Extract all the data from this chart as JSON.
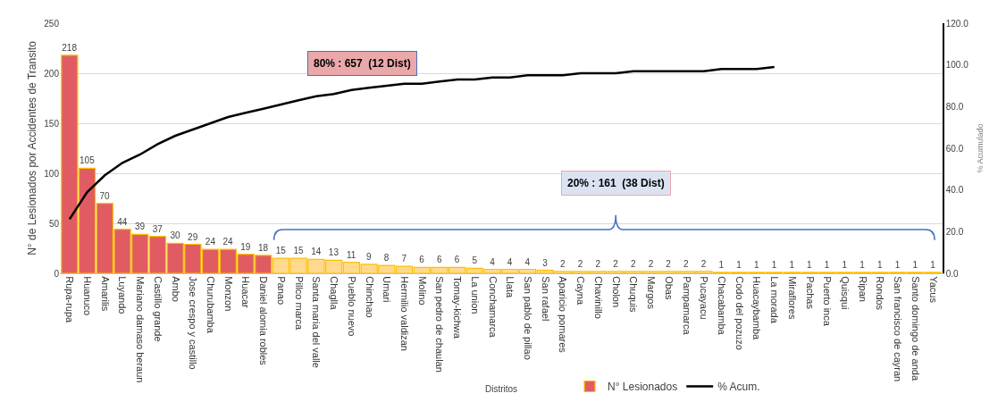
{
  "chart_data": {
    "type": "bar",
    "xlabel": "Distritos",
    "ylabel": "N° de Lesionados por Accidentes de Transito",
    "y2label": "% Acumulado",
    "categories": [
      "Rupa-rupa",
      "Huanuco",
      "Amarilis",
      "Luyando",
      "Mariano damaso beraun",
      "Castillo grande",
      "Ambo",
      "Jose crespo y castillo",
      "Churubamba",
      "Monzon",
      "Huacar",
      "Daniel alomia robles",
      "Panao",
      "Pillco marca",
      "Santa maria del valle",
      "Chaglla",
      "Pueblo nuevo",
      "Chinchao",
      "Umari",
      "Hermilio valdizan",
      "Molino",
      "San pedro de chaulan",
      "Tomay-kichwa",
      "La union",
      "Conchamarca",
      "Llata",
      "San pablo de pillao",
      "San rafael",
      "Aparicio pomares",
      "Cayna",
      "Chavinillo",
      "Cholon",
      "Chuquis",
      "Margos",
      "Obas",
      "Pampamarca",
      "Pucayacu",
      "Chacabamba",
      "Codo del pozuzo",
      "Huacaybamba",
      "La morada",
      "Miraflores",
      "Pachas",
      "Puerto inca",
      "Quisqui",
      "Ripan",
      "Rondos",
      "San francisco de cayran",
      "Santo domingo de anda",
      "Yacus"
    ],
    "series": [
      {
        "name": "N° Lesionados",
        "colors": [
          "#e05c62",
          "#e05c62",
          "#e05c62",
          "#e05c62",
          "#e05c62",
          "#e05c62",
          "#e05c62",
          "#e05c62",
          "#e05c62",
          "#e05c62",
          "#e05c62",
          "#e05c62",
          "#ffd98e",
          "#ffd98e",
          "#ffd98e",
          "#ffd98e",
          "#ffd98e",
          "#ffd98e",
          "#ffd98e",
          "#ffd98e",
          "#ffd98e",
          "#ffd98e",
          "#ffd98e",
          "#ffd98e",
          "#ffd98e",
          "#ffd98e",
          "#ffd98e",
          "#ffd98e",
          "#ffd98e",
          "#ffd98e",
          "#ffd98e",
          "#ffd98e",
          "#ffd98e",
          "#ffd98e",
          "#ffd98e",
          "#ffd98e",
          "#ffd98e",
          "#ffd98e",
          "#ffd98e",
          "#ffd98e",
          "#ffd98e",
          "#ffd98e",
          "#ffd98e",
          "#ffd98e",
          "#ffd98e",
          "#ffd98e",
          "#ffd98e",
          "#ffd98e",
          "#ffd98e",
          "#ffd98e"
        ],
        "values": [
          218,
          105,
          70,
          44,
          39,
          37,
          30,
          29,
          24,
          24,
          19,
          18,
          15,
          15,
          14,
          13,
          11,
          9,
          8,
          7,
          6,
          6,
          6,
          5,
          4,
          4,
          4,
          3,
          2,
          2,
          2,
          2,
          2,
          2,
          2,
          2,
          2,
          1,
          1,
          1,
          1,
          1,
          1,
          1,
          1,
          1,
          1,
          1,
          1,
          1
        ],
        "value_labels": [
          "218",
          "105",
          "70",
          "44",
          "39",
          "37",
          "30",
          "29",
          "24",
          "24",
          "19",
          "18",
          "15",
          "15",
          "14",
          "13",
          "11",
          "9",
          "8",
          "7",
          "6",
          "6",
          "6",
          "5",
          "4",
          "4",
          "4",
          "3",
          "2",
          "2",
          "2",
          "2",
          "2",
          "2",
          "2",
          "2",
          "2",
          "1",
          "1",
          "1",
          "1",
          "1",
          "1",
          "1",
          "1",
          "1",
          "1",
          "1",
          "1",
          "1"
        ]
      },
      {
        "name": "% Acum.",
        "type": "line",
        "axis": "y2",
        "color": "#000000",
        "values": [
          26,
          39,
          47,
          53,
          57,
          62,
          66,
          69,
          72,
          75,
          77,
          79,
          81,
          83,
          85,
          86,
          88,
          89,
          90,
          91,
          91,
          92,
          93,
          93,
          94,
          94,
          95,
          95,
          95,
          96,
          96,
          96,
          97,
          97,
          97,
          97,
          97,
          98,
          98,
          98,
          99,
          null,
          null,
          null,
          null,
          null,
          null,
          null,
          null,
          null
        ]
      }
    ],
    "ylim": [
      0,
      250
    ],
    "yticks": [
      0,
      50,
      100,
      150,
      200,
      250
    ],
    "y2lim": [
      0,
      120
    ],
    "y2ticks": [
      {
        "value": 0,
        "label": "0.0"
      },
      {
        "value": 20,
        "label": "20.0"
      },
      {
        "value": 40,
        "label": "40.0"
      },
      {
        "value": 60,
        "label": "60.0"
      },
      {
        "value": 80,
        "label": "80.0"
      },
      {
        "value": 100,
        "label": "100.0"
      },
      {
        "value": 120,
        "label": "120.0"
      }
    ],
    "grid": "y",
    "legend": "bottom",
    "marker": "none",
    "line_style": "solid",
    "annotations": [
      "80% : 657  (12 Dist)",
      "20% : 161  (38 Dist)"
    ]
  }
}
